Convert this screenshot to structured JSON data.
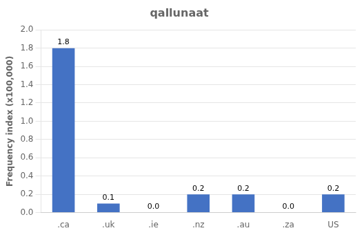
{
  "chart_data": {
    "type": "bar",
    "title": "qallunaat",
    "categories": [
      ".ca",
      ".uk",
      ".ie",
      ".nz",
      ".au",
      ".za",
      "US"
    ],
    "values": [
      1.8,
      0.1,
      0.0,
      0.2,
      0.2,
      0.0,
      0.2
    ],
    "value_labels": [
      "1.8",
      "0.1",
      "0.0",
      "0.2",
      "0.2",
      "0.0",
      "0.2"
    ],
    "data_labels": true,
    "color": "#4472C4",
    "ylabel": "Frequency index (x100,000)",
    "ylim": [
      0.0,
      2.0
    ],
    "yticks": [
      {
        "value": 0.0,
        "label": "0.0"
      },
      0.2,
      0.4,
      0.6,
      0.8,
      {
        "value": 1.0,
        "label": "1.0"
      },
      1.2,
      1.4,
      1.6,
      1.8,
      {
        "value": 2.0,
        "label": "2.0"
      }
    ],
    "grid": true
  }
}
